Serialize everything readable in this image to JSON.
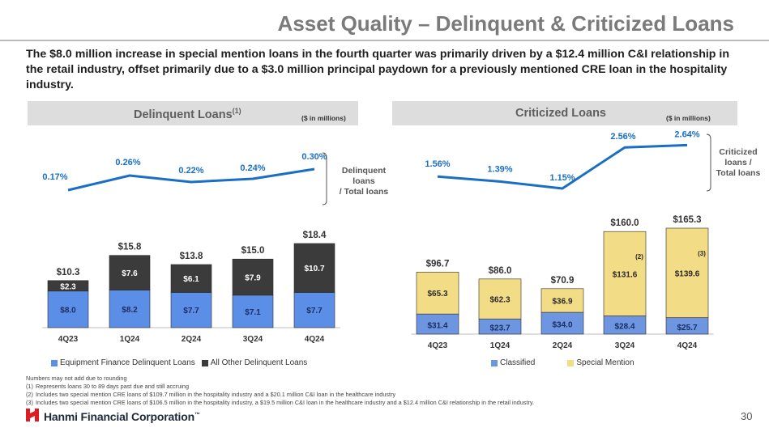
{
  "title": "Asset Quality – Delinquent & Criticized Loans",
  "intro": "The $8.0 million increase in special mention loans in the fourth quarter was primarily driven by a $12.4 million C&I relationship in the retail industry, offset primarily due to a $3.0 million principal paydown for a previously mentioned CRE loan in the hospitality industry.",
  "delinquent": {
    "heading": "Delinquent Loans",
    "heading_sup": "(1)",
    "unit": "($ in millions)",
    "ratio_note_line1": "Delinquent loans",
    "ratio_note_line2": "/ Total loans"
  },
  "criticized": {
    "heading": "Criticized Loans",
    "unit": "($ in millions)",
    "ratio_note_line1": "Criticized",
    "ratio_note_line2": "loans /",
    "ratio_note_line3": "Total loans"
  },
  "chart_data": [
    {
      "type": "bar",
      "stacked": true,
      "title": "Delinquent Loans",
      "categories": [
        "4Q23",
        "1Q24",
        "2Q24",
        "3Q24",
        "4Q24"
      ],
      "series": [
        {
          "name": "Equipment Finance Delinquent Loans",
          "values": [
            8.0,
            8.2,
            7.7,
            7.1,
            7.7
          ],
          "labels": [
            "$8.0",
            "$8.2",
            "$7.7",
            "$7.1",
            "$7.7"
          ],
          "color": "#5b8ee6"
        },
        {
          "name": "All Other Delinquent Loans",
          "values": [
            2.3,
            7.6,
            6.1,
            7.9,
            10.7
          ],
          "labels": [
            "$2.3",
            "$7.6",
            "$6.1",
            "$7.9",
            "$10.7"
          ],
          "color": "#3b3b3b"
        }
      ],
      "totals": [
        "$10.3",
        "$15.8",
        "$13.8",
        "$15.0",
        "$18.4"
      ],
      "total_values": [
        10.3,
        15.8,
        13.8,
        15.0,
        18.4
      ],
      "ratio_line": {
        "values": [
          0.17,
          0.26,
          0.22,
          0.24,
          0.3
        ],
        "labels": [
          "0.17%",
          "0.26%",
          "0.22%",
          "0.24%",
          "0.30%"
        ],
        "color": "#1a6fc4"
      },
      "legend_position": "bottom"
    },
    {
      "type": "bar",
      "stacked": true,
      "title": "Criticized Loans",
      "categories": [
        "4Q23",
        "1Q24",
        "2Q24",
        "3Q24",
        "4Q24"
      ],
      "series": [
        {
          "name": "Classified",
          "values": [
            31.4,
            23.7,
            34.0,
            28.4,
            25.7
          ],
          "labels": [
            "$31.4",
            "$23.7",
            "$34.0",
            "$28.4",
            "$25.7"
          ],
          "color": "#6d95e0"
        },
        {
          "name": "Special Mention",
          "values": [
            65.3,
            62.3,
            36.9,
            131.6,
            139.6
          ],
          "labels": [
            "$65.3",
            "$62.3",
            "$36.9",
            "$131.6",
            "$139.6"
          ],
          "color": "#f2dc86"
        }
      ],
      "totals": [
        "$96.7",
        "$86.0",
        "$70.9",
        "$160.0",
        "$165.3"
      ],
      "total_values": [
        96.7,
        86.0,
        70.9,
        160.0,
        165.3
      ],
      "segment_footnotes": [
        "",
        "",
        "",
        "(2)",
        "(3)"
      ],
      "ratio_line": {
        "values": [
          1.56,
          1.39,
          1.15,
          2.56,
          2.64
        ],
        "labels": [
          "1.56%",
          "1.39%",
          "1.15%",
          "2.56%",
          "2.64%"
        ],
        "color": "#1a6fc4"
      },
      "legend_position": "bottom"
    }
  ],
  "footnotes": {
    "intro": "Numbers may not add due to rounding",
    "items": [
      {
        "num": "(1)",
        "text": "Represents loans 30 to 89 days past due and still accruing"
      },
      {
        "num": "(2)",
        "text": "Includes two special mention CRE loans of $109.7 million in the hospitality industry and a $20.1 million C&I loan in the healthcare industry"
      },
      {
        "num": "(3)",
        "text": "Includes two special mention CRE loans of $106.5 million in the hospitality industry, a $19.5 million C&I loan in the healthcare industry and a $12.4 million C&I relationship in the retail industry."
      }
    ]
  },
  "footer": {
    "company": "Hanmi Financial Corporation",
    "tm": "™",
    "page_number": "30",
    "brand_color": "#e11b22"
  }
}
